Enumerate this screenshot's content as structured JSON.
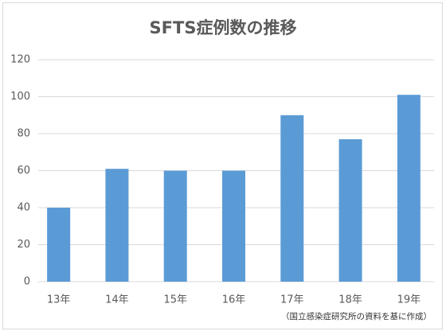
{
  "chart_data": {
    "type": "bar",
    "title": "SFTS症例数の推移",
    "categories": [
      "13年",
      "14年",
      "15年",
      "16年",
      "17年",
      "18年",
      "19年"
    ],
    "values": [
      40,
      61,
      60,
      60,
      90,
      77,
      101
    ],
    "color": "#5b9bd5",
    "ylim": [
      0,
      120
    ],
    "yticks": [
      0,
      20,
      40,
      60,
      80,
      100,
      120
    ],
    "grid": true,
    "annotation": "（国立感染症研究所の資料を基に作成）"
  }
}
